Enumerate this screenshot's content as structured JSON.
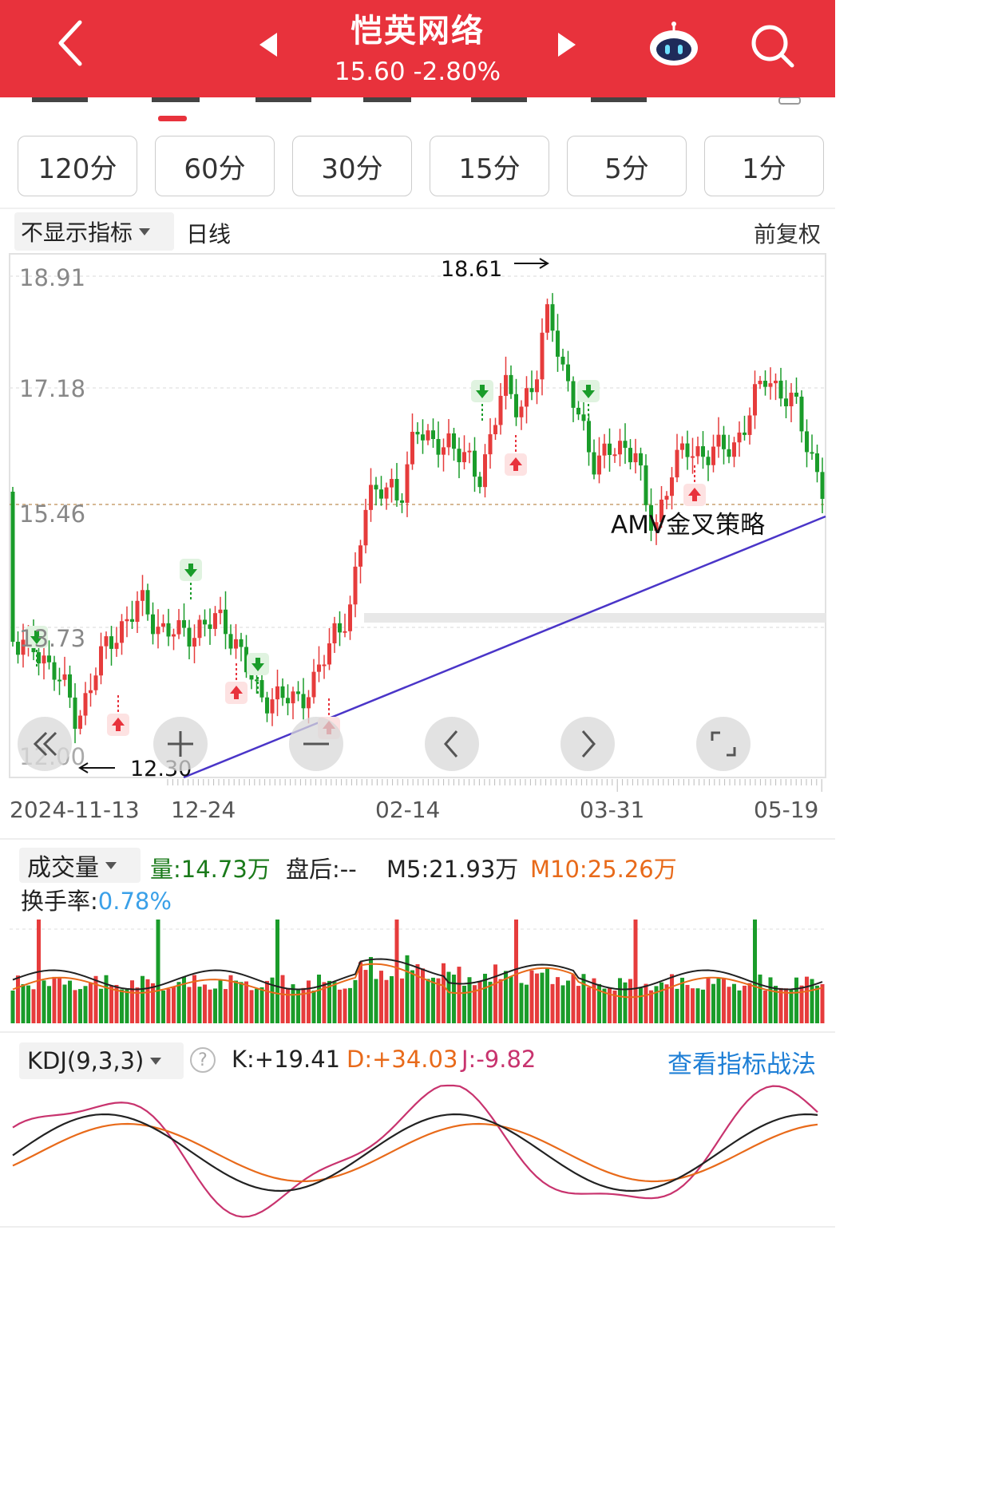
{
  "header": {
    "stock_name": "恺英网络",
    "price_line": "15.60 -2.80%",
    "bg_color": "#e8323c",
    "icons": [
      "back-arrow-icon",
      "prev-stock-icon",
      "next-stock-icon",
      "robot-assistant-icon",
      "search-icon"
    ]
  },
  "periods": [
    "120分",
    "60分",
    "30分",
    "15分",
    "5分",
    "1分"
  ],
  "indicator_bar": {
    "selector": "不显示指标",
    "period_label": "日线",
    "adjust_label": "前复权"
  },
  "main_chart": {
    "y_ticks": [
      "18.91",
      "17.18",
      "15.46",
      "13.73",
      "12.00"
    ],
    "high_label": "18.61",
    "low_label": "12.30",
    "strategy_label": "AMV金叉策略",
    "dates": [
      "2024-11-13",
      "12-24",
      "02-14",
      "03-31",
      "05-19"
    ],
    "colors": {
      "up": "#e63c3c",
      "down": "#1a9c2a",
      "trend_line": "#4a35c8",
      "buy_signal": "#e8323c",
      "sell_signal": "#1a9c2a"
    }
  },
  "chart_controls": [
    "rewind-icon",
    "zoom-in-icon",
    "zoom-out-icon",
    "scroll-left-icon",
    "scroll-right-icon",
    "fullscreen-icon"
  ],
  "volume": {
    "selector": "成交量",
    "volume_text": "量:14.73万",
    "after_hours": "盘后:--",
    "m5": "M5:21.93万",
    "m10": "M10:25.26万",
    "turnover_label": "换手率:",
    "turnover_value": "0.78%",
    "colors": {
      "volume": "#1a7a1a",
      "m5": "#222222",
      "m10": "#e86a1a",
      "turnover": "#3aa0e8"
    }
  },
  "kdj": {
    "selector": "KDJ(9,3,3)",
    "k": "K:+19.41",
    "d": "D:+34.03",
    "j": "J:-9.82",
    "link": "查看指标战法",
    "colors": {
      "k": "#222222",
      "d": "#e86a1a",
      "j": "#c8336e",
      "link": "#1e7fd6"
    }
  }
}
